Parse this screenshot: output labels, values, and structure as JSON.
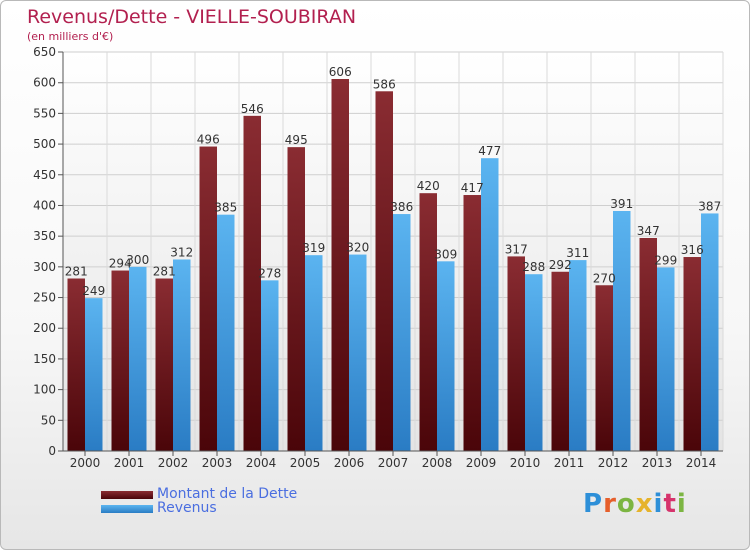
{
  "header": {
    "title": "Revenus/Dette - VIELLE-SOUBIRAN",
    "subtitle": "(en milliers d'€)"
  },
  "legend": {
    "items": [
      {
        "label": "Montant de la Dette",
        "color": "#6b0e14"
      },
      {
        "label": "Revenus",
        "color": "#3f9be0"
      }
    ]
  },
  "logo": {
    "text": "Proxiti",
    "colors": [
      "#2d8fd8",
      "#e65f2b",
      "#7cb542",
      "#e6b32b",
      "#2d8fd8",
      "#d6336c",
      "#7cb542"
    ]
  },
  "chart_data": {
    "type": "bar",
    "title": "Revenus/Dette - VIELLE-SOUBIRAN",
    "ylabel": "(en milliers d'€)",
    "xlabel": "",
    "ylim": [
      0,
      650
    ],
    "yticks": [
      0,
      50,
      100,
      150,
      200,
      250,
      300,
      350,
      400,
      450,
      500,
      550,
      600,
      650
    ],
    "grid": true,
    "categories": [
      "2000",
      "2001",
      "2002",
      "2003",
      "2004",
      "2005",
      "2006",
      "2007",
      "2008",
      "2009",
      "2010",
      "2011",
      "2012",
      "2013",
      "2014"
    ],
    "series": [
      {
        "name": "Montant de la Dette",
        "color": "#6b0e14",
        "values": [
          281,
          294,
          281,
          496,
          546,
          495,
          606,
          586,
          420,
          417,
          317,
          292,
          270,
          347,
          316
        ]
      },
      {
        "name": "Revenus",
        "color": "#3f9be0",
        "values": [
          249,
          300,
          312,
          385,
          278,
          319,
          320,
          386,
          309,
          477,
          288,
          311,
          391,
          299,
          387
        ]
      }
    ]
  }
}
